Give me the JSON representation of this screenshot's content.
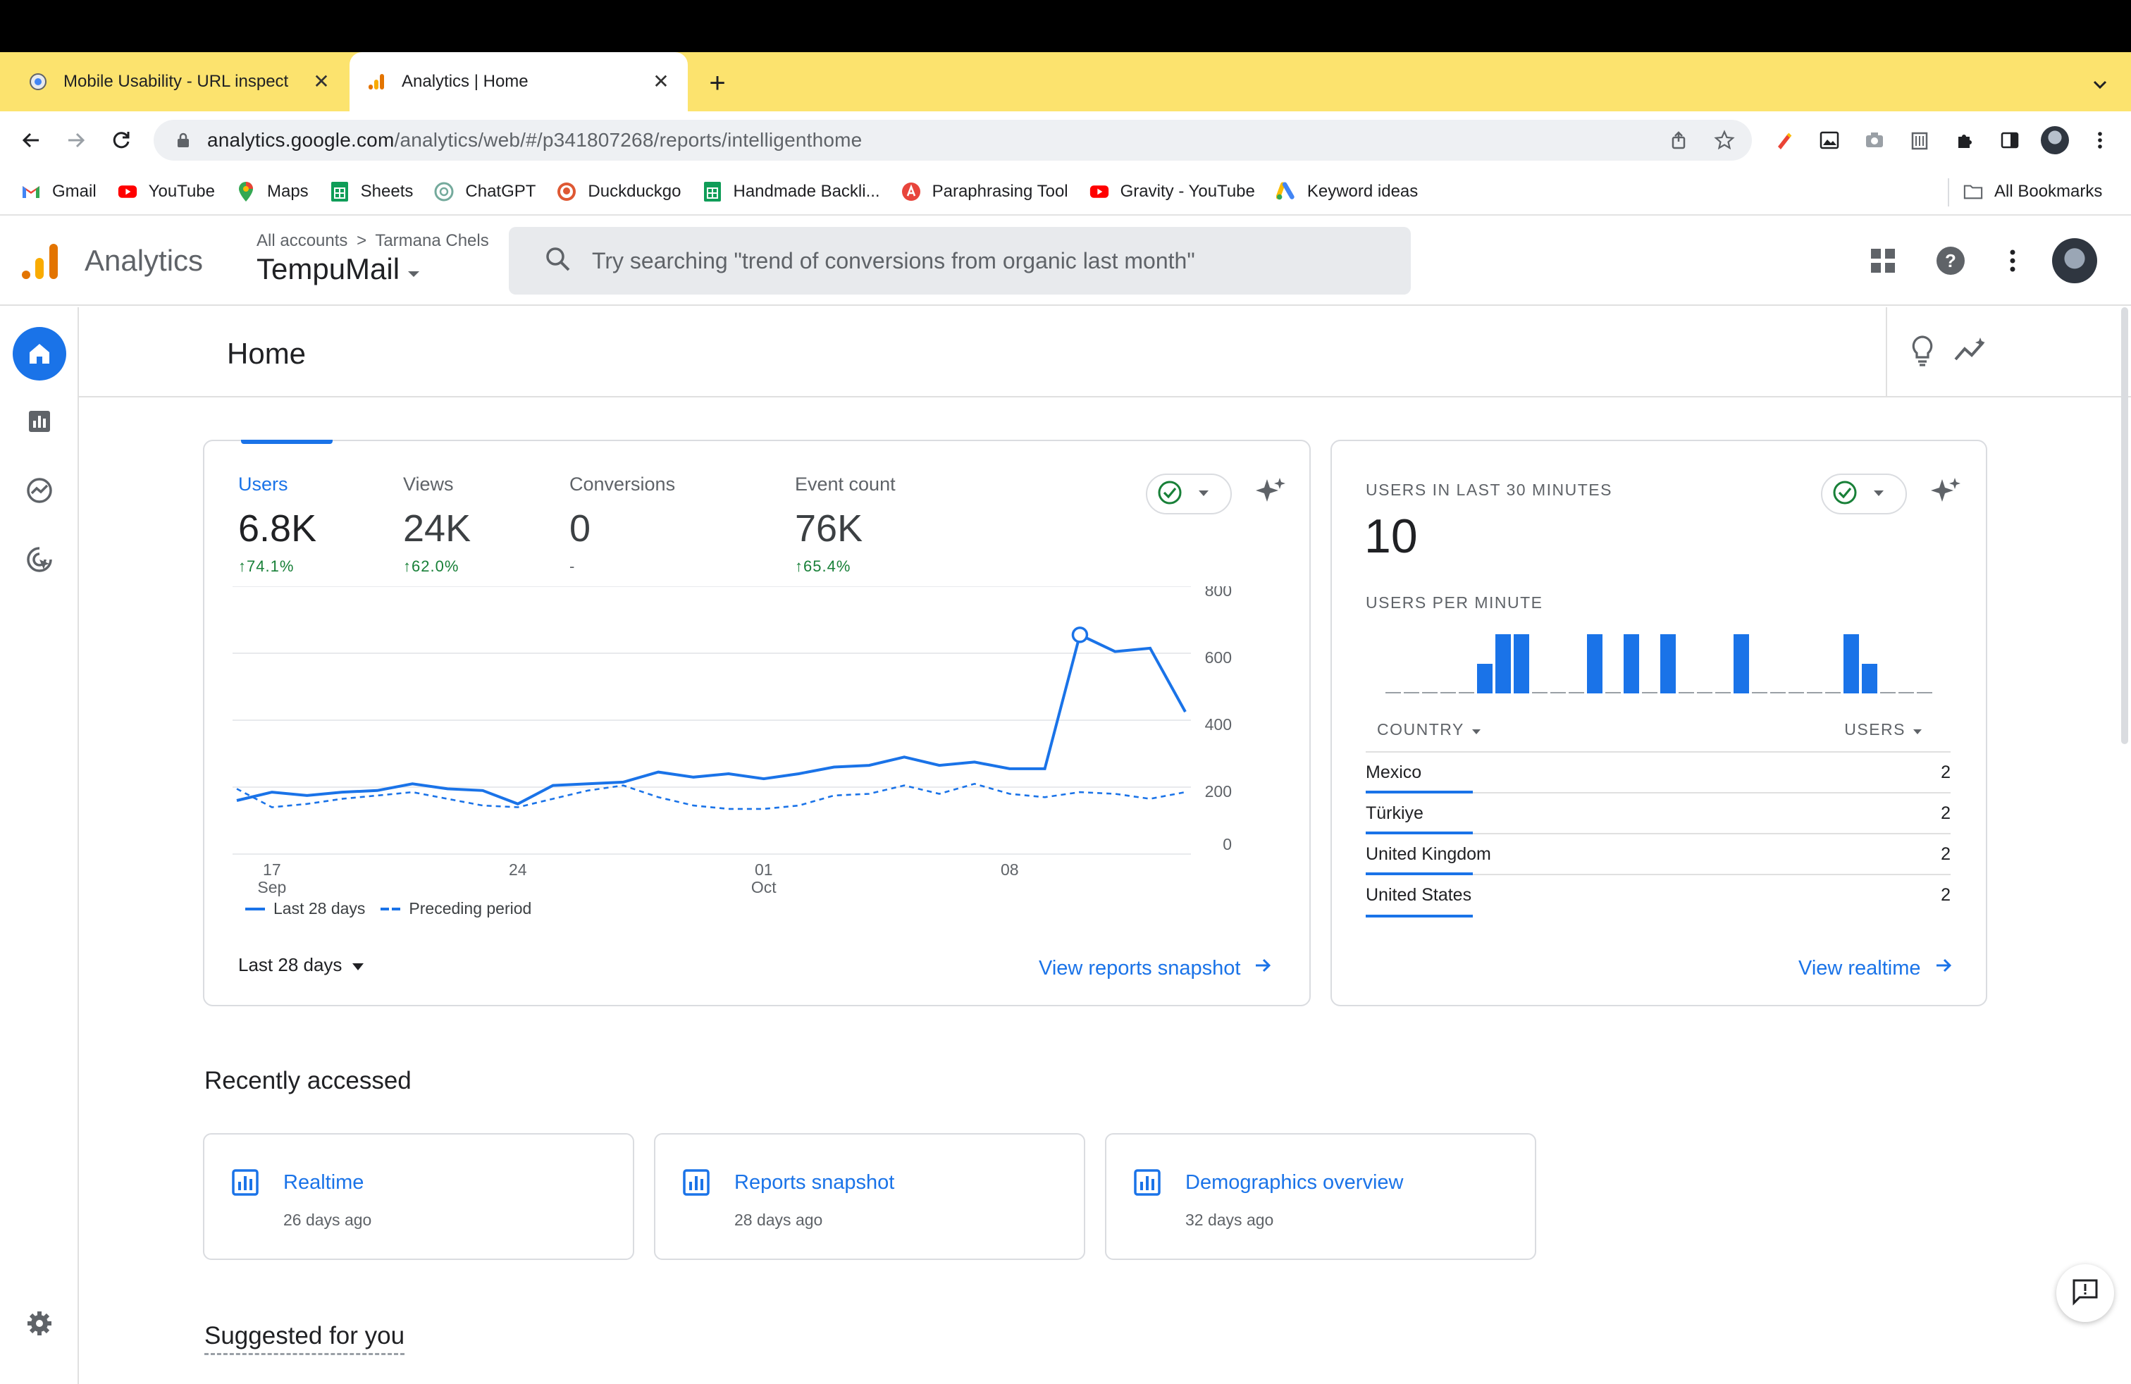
{
  "browser": {
    "tabs": [
      {
        "title": "Mobile Usability - URL inspect",
        "active": false
      },
      {
        "title": "Analytics | Home",
        "active": true
      }
    ],
    "url_host": "analytics.google.com",
    "url_path": "/analytics/web/#/p341807268/reports/intelligenthome",
    "bookmarks": [
      "Gmail",
      "YouTube",
      "Maps",
      "Sheets",
      "ChatGPT",
      "Duckduckgo",
      "Handmade Backli...",
      "Paraphrasing Tool",
      "Gravity - YouTube",
      "Keyword ideas"
    ],
    "all_bookmarks": "All Bookmarks"
  },
  "header": {
    "product": "Analytics",
    "crumb_root": "All accounts",
    "crumb_account": "Tarmana Chels",
    "property": "TempuMail",
    "search_placeholder": "Try searching \"trend of conversions from organic last month\""
  },
  "page": {
    "title": "Home"
  },
  "overview": {
    "metrics": [
      {
        "label": "Users",
        "value": "6.8K",
        "change": "74.1%",
        "selected": true
      },
      {
        "label": "Views",
        "value": "24K",
        "change": "62.0%",
        "selected": false
      },
      {
        "label": "Conversions",
        "value": "0",
        "change": "-",
        "selected": false
      },
      {
        "label": "Event count",
        "value": "76K",
        "change": "65.4%",
        "selected": false
      }
    ],
    "legend_current": "Last 28 days",
    "legend_previous": "Preceding period",
    "date_range": "Last 28 days",
    "link": "View reports snapshot"
  },
  "chart_data": {
    "type": "line",
    "x": [
      "Sep 16",
      "Sep 17",
      "Sep 18",
      "Sep 19",
      "Sep 20",
      "Sep 21",
      "Sep 22",
      "Sep 23",
      "Sep 24",
      "Sep 25",
      "Sep 26",
      "Sep 27",
      "Sep 28",
      "Sep 29",
      "Sep 30",
      "Oct 01",
      "Oct 02",
      "Oct 03",
      "Oct 04",
      "Oct 05",
      "Oct 06",
      "Oct 07",
      "Oct 08",
      "Oct 09",
      "Oct 10",
      "Oct 11",
      "Oct 12",
      "Oct 13"
    ],
    "series": [
      {
        "name": "Last 28 days",
        "style": "solid",
        "values": [
          160,
          185,
          175,
          185,
          190,
          210,
          195,
          190,
          150,
          205,
          210,
          215,
          245,
          230,
          240,
          225,
          240,
          260,
          265,
          290,
          265,
          275,
          255,
          255,
          655,
          605,
          615,
          425
        ]
      },
      {
        "name": "Preceding period",
        "style": "dashed",
        "values": [
          195,
          140,
          150,
          165,
          175,
          185,
          165,
          145,
          140,
          165,
          190,
          205,
          170,
          145,
          135,
          135,
          145,
          175,
          180,
          205,
          180,
          210,
          180,
          170,
          185,
          180,
          165,
          185
        ]
      }
    ],
    "highlight_index": 24,
    "x_ticks": [
      {
        "index": 1,
        "l1": "17",
        "l2": "Sep"
      },
      {
        "index": 8,
        "l1": "24",
        "l2": ""
      },
      {
        "index": 15,
        "l1": "01",
        "l2": "Oct"
      },
      {
        "index": 22,
        "l1": "08",
        "l2": ""
      }
    ],
    "y_ticks": [
      0,
      200,
      400,
      600,
      800
    ],
    "ylim": [
      0,
      800
    ],
    "grid": true,
    "y_axis_side": "right",
    "colors": {
      "current": "#1a73e8",
      "previous": "#1a73e8"
    }
  },
  "realtime": {
    "title": "USERS IN LAST 30 MINUTES",
    "value": "10",
    "per_minute_label": "USERS PER MINUTE",
    "per_minute": [
      0,
      0,
      0,
      0,
      0,
      1,
      2,
      2,
      0,
      0,
      0,
      2,
      0,
      2,
      0,
      2,
      0,
      0,
      0,
      2,
      0,
      0,
      0,
      0,
      0,
      2,
      1,
      0,
      0,
      0
    ],
    "col_country": "COUNTRY",
    "col_users": "USERS",
    "rows": [
      {
        "country": "Mexico",
        "users": "2"
      },
      {
        "country": "Türkiye",
        "users": "2"
      },
      {
        "country": "United Kingdom",
        "users": "2"
      },
      {
        "country": "United States",
        "users": "2"
      }
    ],
    "link": "View realtime"
  },
  "recent": {
    "title": "Recently accessed",
    "items": [
      {
        "title": "Realtime",
        "sub": "26 days ago"
      },
      {
        "title": "Reports snapshot",
        "sub": "28 days ago"
      },
      {
        "title": "Demographics overview",
        "sub": "32 days ago"
      }
    ]
  },
  "suggested": {
    "title": "Suggested for you"
  },
  "icons": {
    "rail": [
      "home-icon",
      "reports-icon",
      "explore-icon",
      "advertising-icon",
      "settings-icon"
    ],
    "accent": "#1a73e8",
    "positive": "#188038"
  }
}
